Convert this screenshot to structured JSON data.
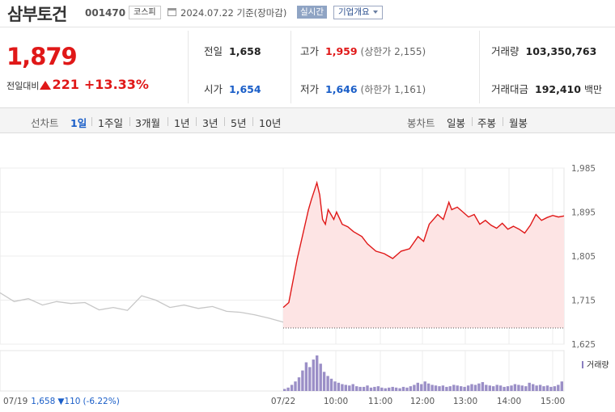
{
  "header": {
    "stock_name": "삼부토건",
    "stock_code": "001470",
    "market": "코스피",
    "date": "2024.07.22 기준(장마감)",
    "live_button": "실시간",
    "company_info_button": "기업개요"
  },
  "summary": {
    "price": "1,879",
    "change_label": "전일대비",
    "change_amount": "221",
    "change_percent": "+13.33%",
    "prev_close_label": "전일",
    "prev_close": "1,658",
    "high_label": "고가",
    "high": "1,959",
    "upper_limit": "(상한가 2,155)",
    "volume_label": "거래량",
    "volume": "103,350,763",
    "open_label": "시가",
    "open": "1,654",
    "low_label": "저가",
    "low": "1,646",
    "lower_limit": "(하한가 1,161)",
    "trade_value_label": "거래대금",
    "trade_value": "192,410",
    "trade_value_unit": "백만"
  },
  "tabs": {
    "line_chart_label": "선차트",
    "periods": [
      "1일",
      "1주일",
      "3개월",
      "1년",
      "3년",
      "5년",
      "10년"
    ],
    "active_period": "1일",
    "candle_chart_label": "봉차트",
    "candles": [
      "일봉",
      "주봉",
      "월봉"
    ]
  },
  "colors": {
    "up": "#e01818",
    "down": "#1a5ec8",
    "prev_day_line": "#c7c7c7",
    "area_fill": "#fde4e4"
  },
  "chart_data": {
    "type": "line",
    "y_ticks": [
      "1,985",
      "1,895",
      "1,805",
      "1,715",
      "1,625"
    ],
    "ylim": [
      1625,
      1985
    ],
    "x_ticks": [
      "07/22",
      "10:00",
      "11:00",
      "12:00",
      "13:00",
      "14:00",
      "15:00"
    ],
    "volume_label": "거래량",
    "prev_day_footer": {
      "date": "07/19",
      "close": "1,658",
      "change": "110",
      "change_pct": "(-6.22%)"
    },
    "reference_price": 1658,
    "series": [
      {
        "name": "07/19",
        "x": [
          0,
          0.05,
          0.1,
          0.15,
          0.2,
          0.25,
          0.3,
          0.35,
          0.4,
          0.45,
          0.5,
          0.55,
          0.6,
          0.65,
          0.7,
          0.75,
          0.8,
          0.85,
          0.9,
          0.95,
          1
        ],
        "values": [
          1730,
          1712,
          1718,
          1705,
          1712,
          1708,
          1710,
          1695,
          1700,
          1694,
          1724,
          1715,
          1700,
          1705,
          1698,
          1702,
          1692,
          1690,
          1685,
          1678,
          1670
        ]
      },
      {
        "name": "07/22",
        "x": [
          0,
          0.02,
          0.03,
          0.05,
          0.07,
          0.09,
          0.1,
          0.12,
          0.13,
          0.14,
          0.15,
          0.16,
          0.17,
          0.18,
          0.19,
          0.21,
          0.23,
          0.25,
          0.28,
          0.3,
          0.33,
          0.36,
          0.39,
          0.42,
          0.45,
          0.48,
          0.5,
          0.52,
          0.55,
          0.57,
          0.59,
          0.6,
          0.62,
          0.64,
          0.66,
          0.68,
          0.7,
          0.72,
          0.74,
          0.76,
          0.78,
          0.8,
          0.82,
          0.84,
          0.86,
          0.88,
          0.9,
          0.92,
          0.94,
          0.96,
          0.98,
          1
        ],
        "values": [
          1700,
          1710,
          1740,
          1800,
          1850,
          1900,
          1920,
          1955,
          1930,
          1880,
          1870,
          1900,
          1890,
          1880,
          1895,
          1870,
          1865,
          1855,
          1845,
          1830,
          1815,
          1810,
          1800,
          1815,
          1820,
          1845,
          1835,
          1870,
          1890,
          1880,
          1915,
          1900,
          1905,
          1895,
          1885,
          1890,
          1870,
          1878,
          1868,
          1862,
          1872,
          1860,
          1866,
          1860,
          1852,
          1868,
          1890,
          1878,
          1884,
          1888,
          1885,
          1887
        ]
      }
    ],
    "volume": [
      3,
      5,
      9,
      14,
      20,
      30,
      42,
      35,
      46,
      52,
      40,
      28,
      22,
      18,
      14,
      12,
      10,
      9,
      8,
      10,
      7,
      6,
      6,
      8,
      5,
      6,
      7,
      5,
      4,
      5,
      6,
      5,
      4,
      6,
      5,
      7,
      9,
      12,
      10,
      14,
      11,
      9,
      8,
      7,
      8,
      6,
      7,
      9,
      8,
      7,
      6,
      8,
      10,
      9,
      11,
      13,
      9,
      8,
      7,
      9,
      8,
      6,
      7,
      8,
      10,
      9,
      8,
      7,
      12,
      10,
      8,
      9,
      7,
      8,
      6,
      7,
      9,
      14
    ]
  }
}
